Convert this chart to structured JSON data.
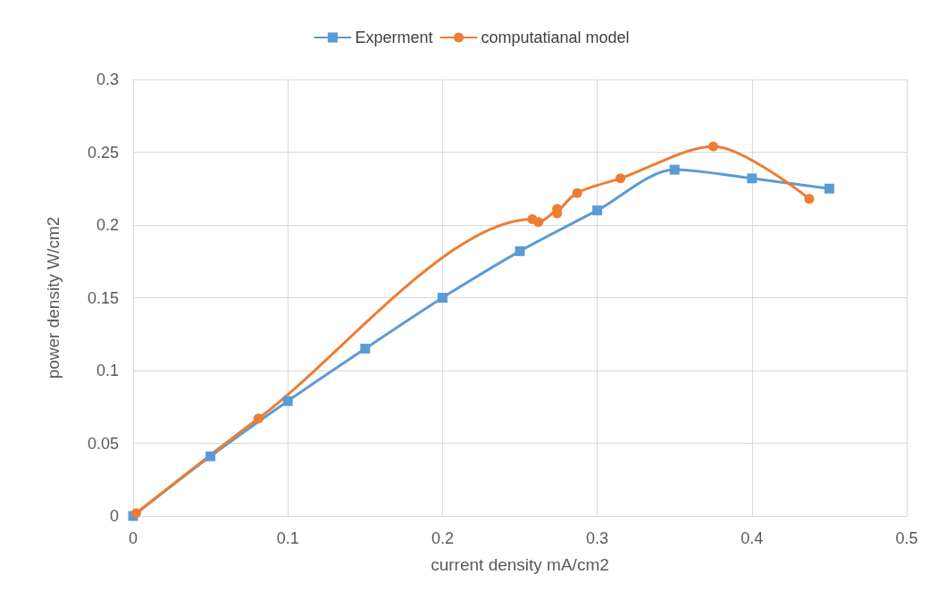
{
  "chart_data": {
    "type": "line",
    "xlabel": "current density mA/cm2",
    "ylabel": "power density W/cm2",
    "xlim": [
      0,
      0.5
    ],
    "xticks": [
      0,
      0.1,
      0.2,
      0.3,
      0.4,
      0.5
    ],
    "ylim": [
      0,
      0.3
    ],
    "yticks": [
      0,
      0.05,
      0.1,
      0.15,
      0.2,
      0.25,
      0.3
    ],
    "grid": true,
    "legend": "top",
    "line_style": "solid",
    "series": [
      {
        "name": "Experment",
        "color": "#5b9bd5",
        "marker": "square",
        "x": [
          0,
          0.05,
          0.1,
          0.15,
          0.2,
          0.25,
          0.3,
          0.35,
          0.4,
          0.45
        ],
        "values": [
          0,
          0.041,
          0.079,
          0.115,
          0.15,
          0.182,
          0.21,
          0.238,
          0.232,
          0.225
        ]
      },
      {
        "name": "computatianal model",
        "color": "#ed7d31",
        "marker": "circle",
        "x": [
          0.002,
          0.081,
          0.258,
          0.262,
          0.274,
          0.274,
          0.287,
          0.315,
          0.375,
          0.437
        ],
        "values": [
          0.002,
          0.067,
          0.204,
          0.202,
          0.211,
          0.208,
          0.222,
          0.232,
          0.254,
          0.218
        ]
      }
    ]
  }
}
